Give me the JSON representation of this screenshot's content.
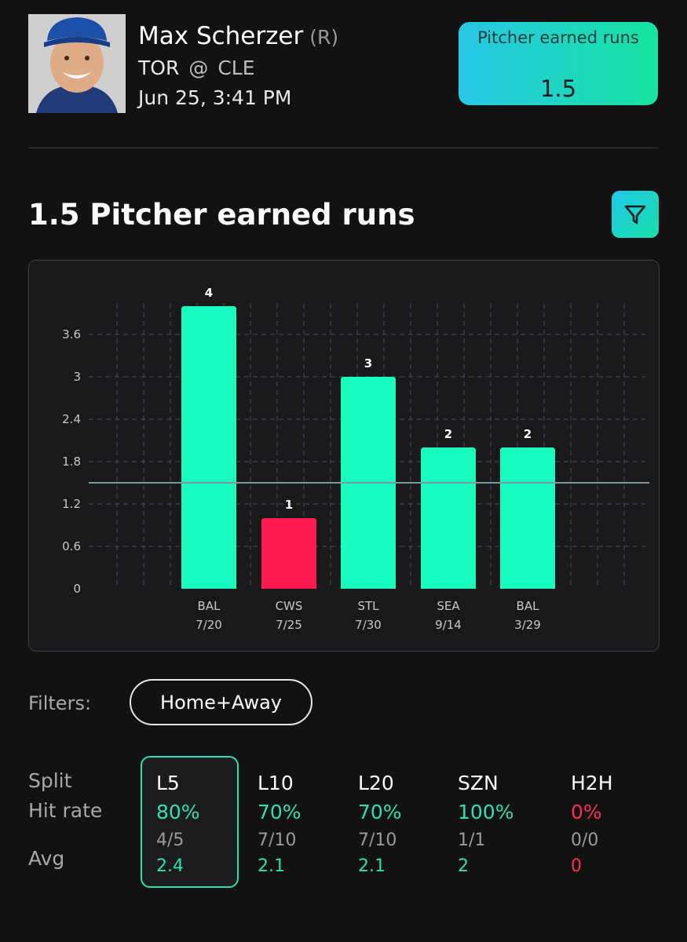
{
  "header": {
    "player_name": "Max Scherzer",
    "hand": "(R)",
    "team": "TOR",
    "at": "@",
    "opponent": "CLE",
    "game_time": "Jun 25, 3:41 PM"
  },
  "prop_card": {
    "label": "Pitcher earned runs",
    "line": "1.5"
  },
  "section": {
    "title": "1.5 Pitcher earned runs",
    "filter_icon": "filter-funnel-icon"
  },
  "colors": {
    "over": "#19fcbf",
    "under": "#ff1a4f",
    "accent_gradient_start": "#27c7e6",
    "accent_gradient_end": "#16e3a0",
    "positive_text": "#2de0b0",
    "negative_text": "#ff2d55"
  },
  "chart_data": {
    "type": "bar",
    "title": "",
    "xlabel": "",
    "ylabel": "",
    "ylim": [
      0,
      4
    ],
    "yticks": [
      "0",
      "0.6",
      "1.2",
      "1.8",
      "2.4",
      "3",
      "3.6"
    ],
    "threshold": 1.5,
    "grid": true,
    "categories": [
      {
        "team": "BAL",
        "date": "7/20"
      },
      {
        "team": "CWS",
        "date": "7/25"
      },
      {
        "team": "STL",
        "date": "7/30"
      },
      {
        "team": "SEA",
        "date": "9/14"
      },
      {
        "team": "BAL",
        "date": "3/29"
      }
    ],
    "values": [
      4,
      1,
      3,
      2,
      2
    ],
    "value_labels": [
      "4",
      "1",
      "3",
      "2",
      "2"
    ]
  },
  "filters": {
    "label": "Filters:",
    "selected": "Home+Away"
  },
  "splits": {
    "row_labels": {
      "split": "Split",
      "hit_rate": "Hit rate",
      "avg": "Avg"
    },
    "selected": "L5",
    "items": [
      {
        "name": "L5",
        "hit_rate": "80%",
        "record": "4/5",
        "avg": "2.4",
        "status": "positive"
      },
      {
        "name": "L10",
        "hit_rate": "70%",
        "record": "7/10",
        "avg": "2.1",
        "status": "positive"
      },
      {
        "name": "L20",
        "hit_rate": "70%",
        "record": "7/10",
        "avg": "2.1",
        "status": "positive"
      },
      {
        "name": "SZN",
        "hit_rate": "100%",
        "record": "1/1",
        "avg": "2",
        "status": "positive"
      },
      {
        "name": "H2H",
        "hit_rate": "0%",
        "record": "0/0",
        "avg": "0",
        "status": "negative"
      }
    ]
  }
}
